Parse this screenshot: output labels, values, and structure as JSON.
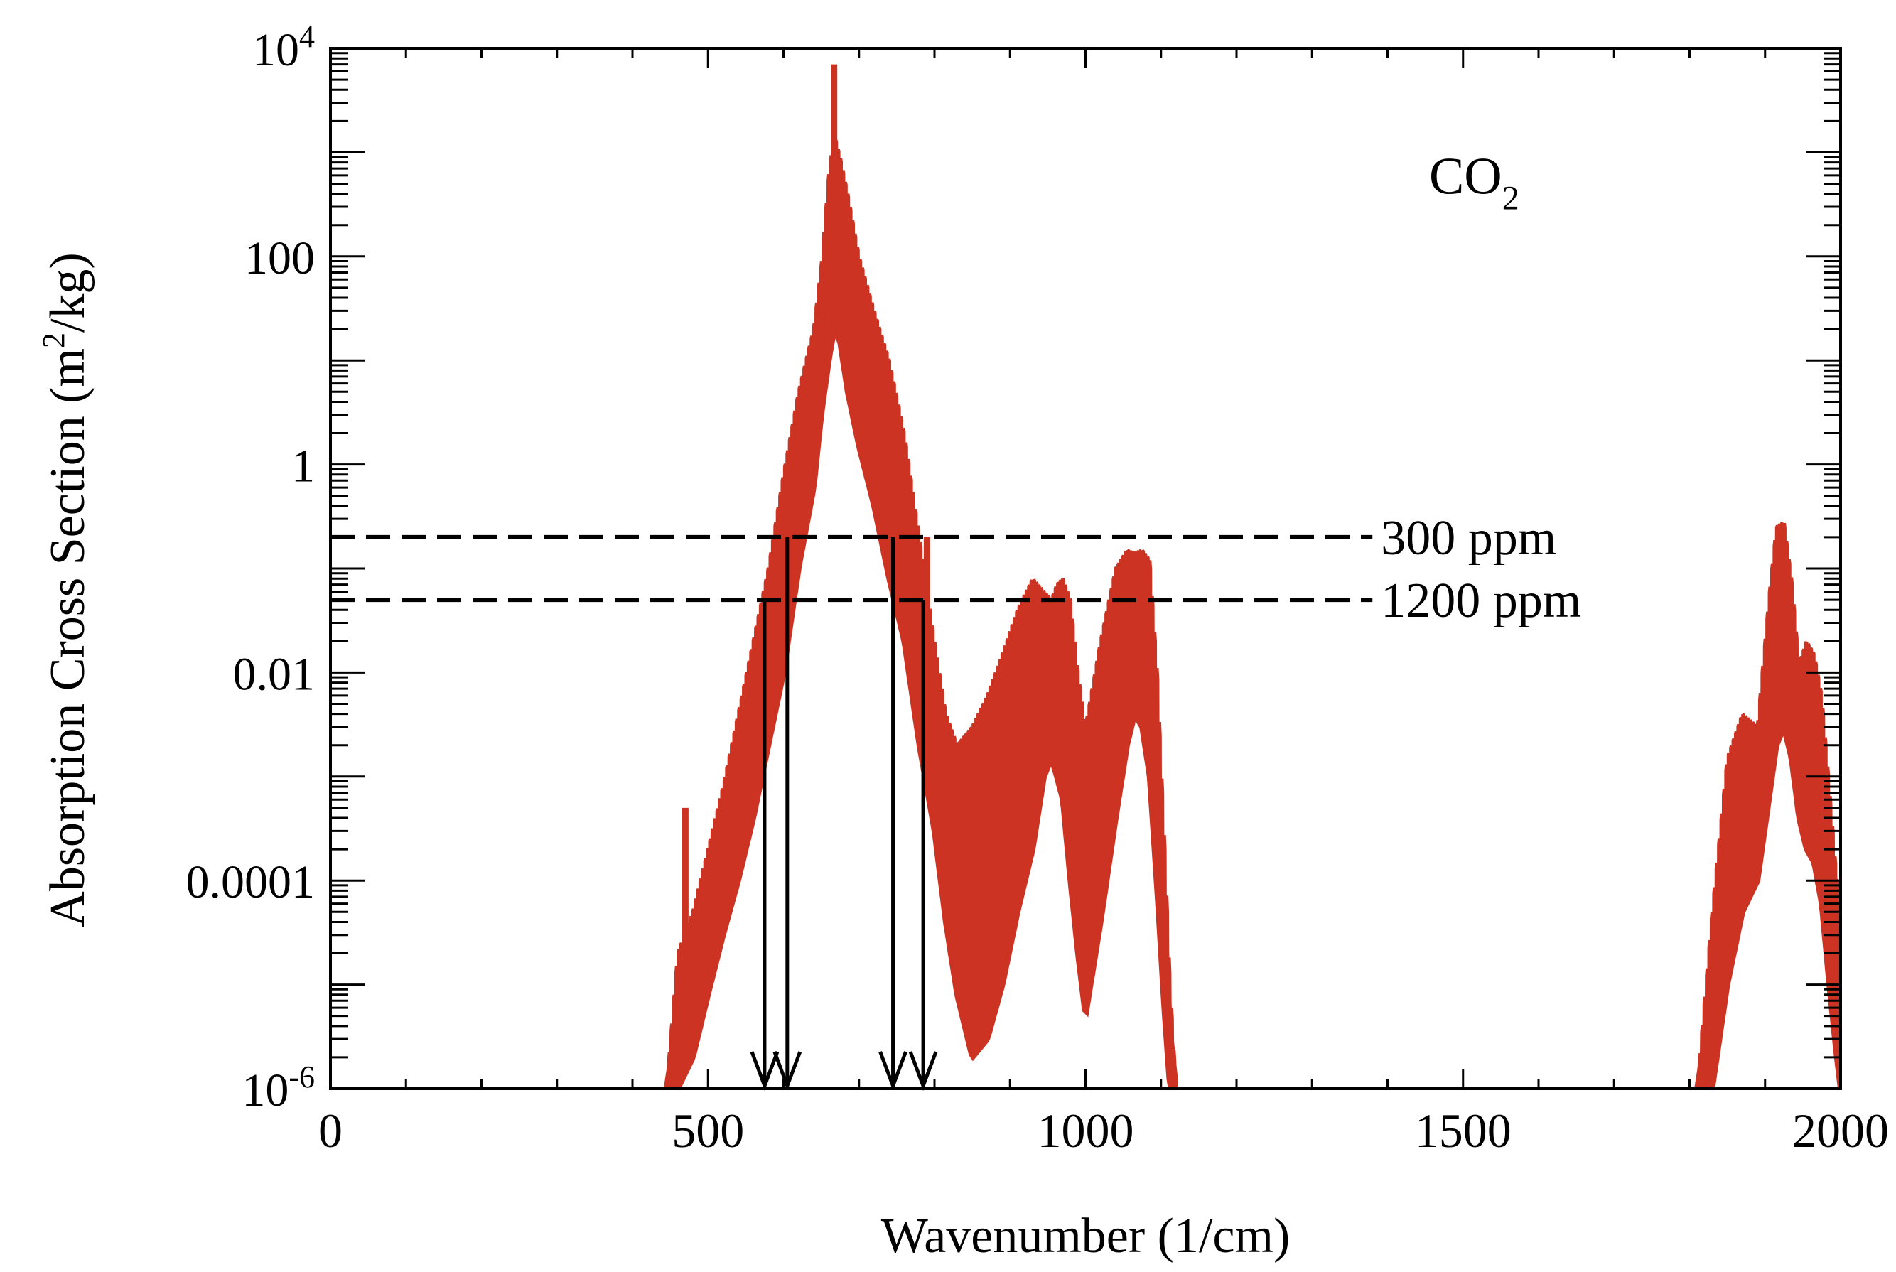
{
  "chart_data": {
    "type": "line",
    "title": "",
    "xlabel": "Wavenumber (1/cm)",
    "ylabel": {
      "prefix": "Absorption Cross Section (m",
      "sup": "2",
      "suffix": "/kg)"
    },
    "xlim": [
      0,
      2000
    ],
    "ylim": [
      1e-06,
      10000
    ],
    "yscale": "log",
    "grid": false,
    "legend": "none",
    "x_ticks": [
      0,
      500,
      1000,
      1500,
      2000
    ],
    "y_tick_labels": [
      {
        "value": 1e-06,
        "base": "10",
        "exp": "-6"
      },
      {
        "value": 0.0001,
        "text": "0.0001"
      },
      {
        "value": 0.01,
        "text": "0.01"
      },
      {
        "value": 1,
        "text": "1"
      },
      {
        "value": 100,
        "text": "100"
      },
      {
        "value": 10000,
        "base": "10",
        "exp": "4"
      }
    ],
    "annotation": {
      "base": "CO",
      "sub": "2"
    },
    "color": "#cc3322",
    "band_envelopes": [
      {
        "name": "15 um band upper",
        "x": [
          445,
          460,
          480,
          500,
          520,
          540,
          560,
          580,
          600,
          620,
          640,
          650,
          660,
          667,
          675,
          685,
          700,
          720,
          740,
          760,
          780,
          800,
          815,
          830,
          850,
          870,
          890,
          910,
          930,
          945,
          955,
          962,
          970,
          980,
          990,
          1000,
          1020,
          1040,
          1055,
          1065,
          1075,
          1085,
          1095,
          1105,
          1112,
          1120
        ],
        "y": [
          1e-06,
          2e-05,
          5e-05,
          0.0002,
          0.0008,
          0.004,
          0.02,
          0.1,
          0.8,
          5,
          20,
          80,
          600,
          1500,
          900,
          400,
          100,
          30,
          10,
          2,
          0.2,
          0.02,
          0.004,
          0.002,
          0.003,
          0.006,
          0.015,
          0.04,
          0.08,
          0.06,
          0.05,
          0.07,
          0.08,
          0.05,
          0.01,
          0.003,
          0.02,
          0.1,
          0.15,
          0.14,
          0.15,
          0.12,
          0.01,
          0.0002,
          1e-05,
          1e-06
        ]
      },
      {
        "name": "15 um band lower",
        "x": [
          445,
          460,
          480,
          500,
          520,
          540,
          560,
          580,
          600,
          620,
          640,
          650,
          660,
          667,
          675,
          685,
          700,
          720,
          740,
          760,
          780,
          800,
          815,
          830,
          850,
          870,
          890,
          910,
          930,
          945,
          955,
          962,
          970,
          980,
          990,
          1000,
          1020,
          1040,
          1055,
          1065,
          1075,
          1085,
          1095,
          1105,
          1112,
          1120
        ],
        "y": [
          1e-06,
          1e-06,
          2e-06,
          8e-06,
          3e-05,
          0.0001,
          0.0004,
          0.002,
          0.01,
          0.1,
          0.6,
          3,
          10,
          20,
          15,
          5,
          1.5,
          0.4,
          0.08,
          0.02,
          0.002,
          0.0003,
          4e-05,
          8e-06,
          2e-06,
          3e-06,
          1e-05,
          5e-05,
          0.0002,
          0.001,
          0.0015,
          0.001,
          0.0006,
          0.0001,
          2e-05,
          5e-06,
          4e-05,
          0.0004,
          0.002,
          0.004,
          0.003,
          0.001,
          8e-05,
          5e-06,
          1e-06,
          1e-06
        ]
      },
      {
        "name": "4.3 um band upper",
        "x": [
          1810,
          1830,
          1850,
          1870,
          1890,
          1905,
          1915,
          1925,
          1935,
          1945,
          1955,
          1965,
          1975,
          1985,
          1995,
          2000
        ],
        "y": [
          1e-06,
          5e-05,
          0.0015,
          0.004,
          0.003,
          0.05,
          0.25,
          0.28,
          0.08,
          0.012,
          0.02,
          0.015,
          0.006,
          0.0008,
          0.0001,
          0.0001
        ]
      },
      {
        "name": "4.3 um band lower",
        "x": [
          1810,
          1830,
          1850,
          1870,
          1890,
          1905,
          1915,
          1925,
          1935,
          1945,
          1955,
          1965,
          1975,
          1985,
          1995,
          2000
        ],
        "y": [
          1e-06,
          1e-06,
          1e-05,
          5e-05,
          0.0001,
          0.0006,
          0.002,
          0.003,
          0.0015,
          0.0004,
          0.0002,
          0.00015,
          6e-05,
          1e-05,
          2e-06,
          1e-06
        ]
      }
    ],
    "spikes": [
      {
        "x": 667,
        "y": 7000
      },
      {
        "x": 618,
        "y": 2
      },
      {
        "x": 650,
        "y": 40
      },
      {
        "x": 790,
        "y": 0.2
      },
      {
        "x": 470,
        "y": 0.0005
      }
    ],
    "reference_lines": [
      {
        "label": "300 ppm",
        "y": 0.2,
        "x_end": 1380,
        "dropdown_x": [
          605,
          745
        ]
      },
      {
        "label": "1200 ppm",
        "y": 0.05,
        "x_end": 1380,
        "dropdown_x": [
          575,
          785
        ]
      }
    ]
  }
}
